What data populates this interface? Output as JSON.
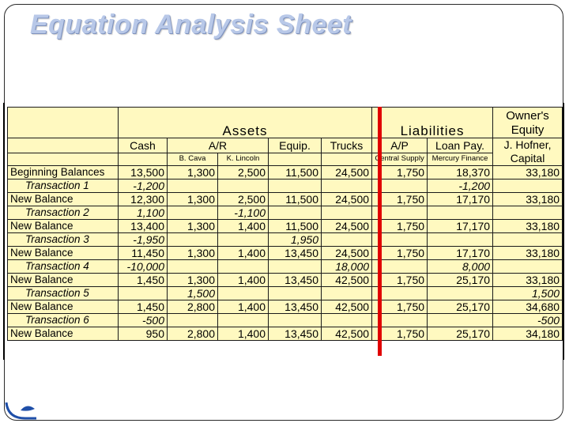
{
  "title": "Equation Analysis Sheet",
  "headers": {
    "assets": "Assets",
    "liabilities": "Liabilities",
    "equity_line1": "Owner's",
    "equity_line2": "Equity",
    "cash": "Cash",
    "ar": "A/R",
    "equip": "Equip.",
    "trucks": "Trucks",
    "ap": "A/P",
    "loan": "Loan Pay.",
    "capital_line1": "J. Hofner,",
    "capital_line2": "Capital",
    "ar_sub1": "B. Cava",
    "ar_sub2": "K. Lincoln",
    "ap_sub": "Central Supply",
    "loan_sub": "Mercury Finance"
  },
  "rows": [
    {
      "label": "Beginning Balances",
      "type": "balance",
      "cash": "13,500",
      "ar1": "1,300",
      "ar2": "2,500",
      "equip": "11,500",
      "trucks": "24,500",
      "ap": "1,750",
      "loan": "18,370",
      "capital": "33,180"
    },
    {
      "label": "Transaction 1",
      "type": "transaction",
      "cash": "-1,200",
      "ar1": "",
      "ar2": "",
      "equip": "",
      "trucks": "",
      "ap": "",
      "loan": "-1,200",
      "capital": ""
    },
    {
      "label": "New Balance",
      "type": "balance",
      "cash": "12,300",
      "ar1": "1,300",
      "ar2": "2,500",
      "equip": "11,500",
      "trucks": "24,500",
      "ap": "1,750",
      "loan": "17,170",
      "capital": "33,180"
    },
    {
      "label": "Transaction 2",
      "type": "transaction",
      "cash": "1,100",
      "ar1": "",
      "ar2": "-1,100",
      "equip": "",
      "trucks": "",
      "ap": "",
      "loan": "",
      "capital": ""
    },
    {
      "label": "New Balance",
      "type": "balance",
      "cash": "13,400",
      "ar1": "1,300",
      "ar2": "1,400",
      "equip": "11,500",
      "trucks": "24,500",
      "ap": "1,750",
      "loan": "17,170",
      "capital": "33,180"
    },
    {
      "label": "Transaction 3",
      "type": "transaction",
      "cash": "-1,950",
      "ar1": "",
      "ar2": "",
      "equip": "1,950",
      "trucks": "",
      "ap": "",
      "loan": "",
      "capital": ""
    },
    {
      "label": "New Balance",
      "type": "balance",
      "cash": "11,450",
      "ar1": "1,300",
      "ar2": "1,400",
      "equip": "13,450",
      "trucks": "24,500",
      "ap": "1,750",
      "loan": "17,170",
      "capital": "33,180"
    },
    {
      "label": "Transaction 4",
      "type": "transaction",
      "cash": "-10,000",
      "ar1": "",
      "ar2": "",
      "equip": "",
      "trucks": "18,000",
      "ap": "",
      "loan": "8,000",
      "capital": ""
    },
    {
      "label": "New Balance",
      "type": "balance",
      "cash": "1,450",
      "ar1": "1,300",
      "ar2": "1,400",
      "equip": "13,450",
      "trucks": "42,500",
      "ap": "1,750",
      "loan": "25,170",
      "capital": "33,180"
    },
    {
      "label": "Transaction 5",
      "type": "transaction",
      "cash": "",
      "ar1": "1,500",
      "ar2": "",
      "equip": "",
      "trucks": "",
      "ap": "",
      "loan": "",
      "capital": "1,500"
    },
    {
      "label": "New Balance",
      "type": "balance",
      "cash": "1,450",
      "ar1": "2,800",
      "ar2": "1,400",
      "equip": "13,450",
      "trucks": "42,500",
      "ap": "1,750",
      "loan": "25,170",
      "capital": "34,680"
    },
    {
      "label": "Transaction 6",
      "type": "transaction",
      "cash": "-500",
      "ar1": "",
      "ar2": "",
      "equip": "",
      "trucks": "",
      "ap": "",
      "loan": "",
      "capital": "-500"
    },
    {
      "label": "New Balance",
      "type": "balance",
      "cash": "950",
      "ar1": "2,800",
      "ar2": "1,400",
      "equip": "13,450",
      "trucks": "42,500",
      "ap": "1,750",
      "loan": "25,170",
      "capital": "34,180"
    }
  ],
  "colors": {
    "sheet_fill": "#fff9c0",
    "divider": "#e00000",
    "title": "#b8c8e8"
  }
}
